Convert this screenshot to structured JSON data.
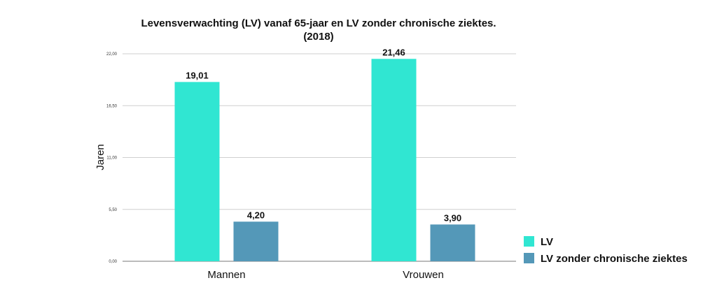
{
  "chart_data": {
    "type": "bar",
    "title": "Levensverwachting (LV) vanaf 65-jaar en LV zonder chronische ziektes.",
    "subtitle": "(2018)",
    "ylabel": "Jaren",
    "xlabel": "",
    "categories": [
      "Mannen",
      "Vrouwen"
    ],
    "series": [
      {
        "name": "LV",
        "color": "#30e6d2",
        "values": [
          19.01,
          21.46
        ],
        "labels": [
          "19,01",
          "21,46"
        ]
      },
      {
        "name": "LV zonder chronische ziektes",
        "color": "#5498b8",
        "values": [
          4.2,
          3.9
        ],
        "labels": [
          "4,20",
          "3,90"
        ]
      }
    ],
    "bar_heights_note_removed": "",
    "ylim": [
      0,
      22
    ],
    "yticks": [
      0,
      5.5,
      11,
      16.5,
      22
    ],
    "ytick_labels": [
      "0,00",
      "5,50",
      "11,00",
      "16,50",
      "22,00"
    ],
    "grid": true,
    "legend_position": "right-bottom"
  }
}
